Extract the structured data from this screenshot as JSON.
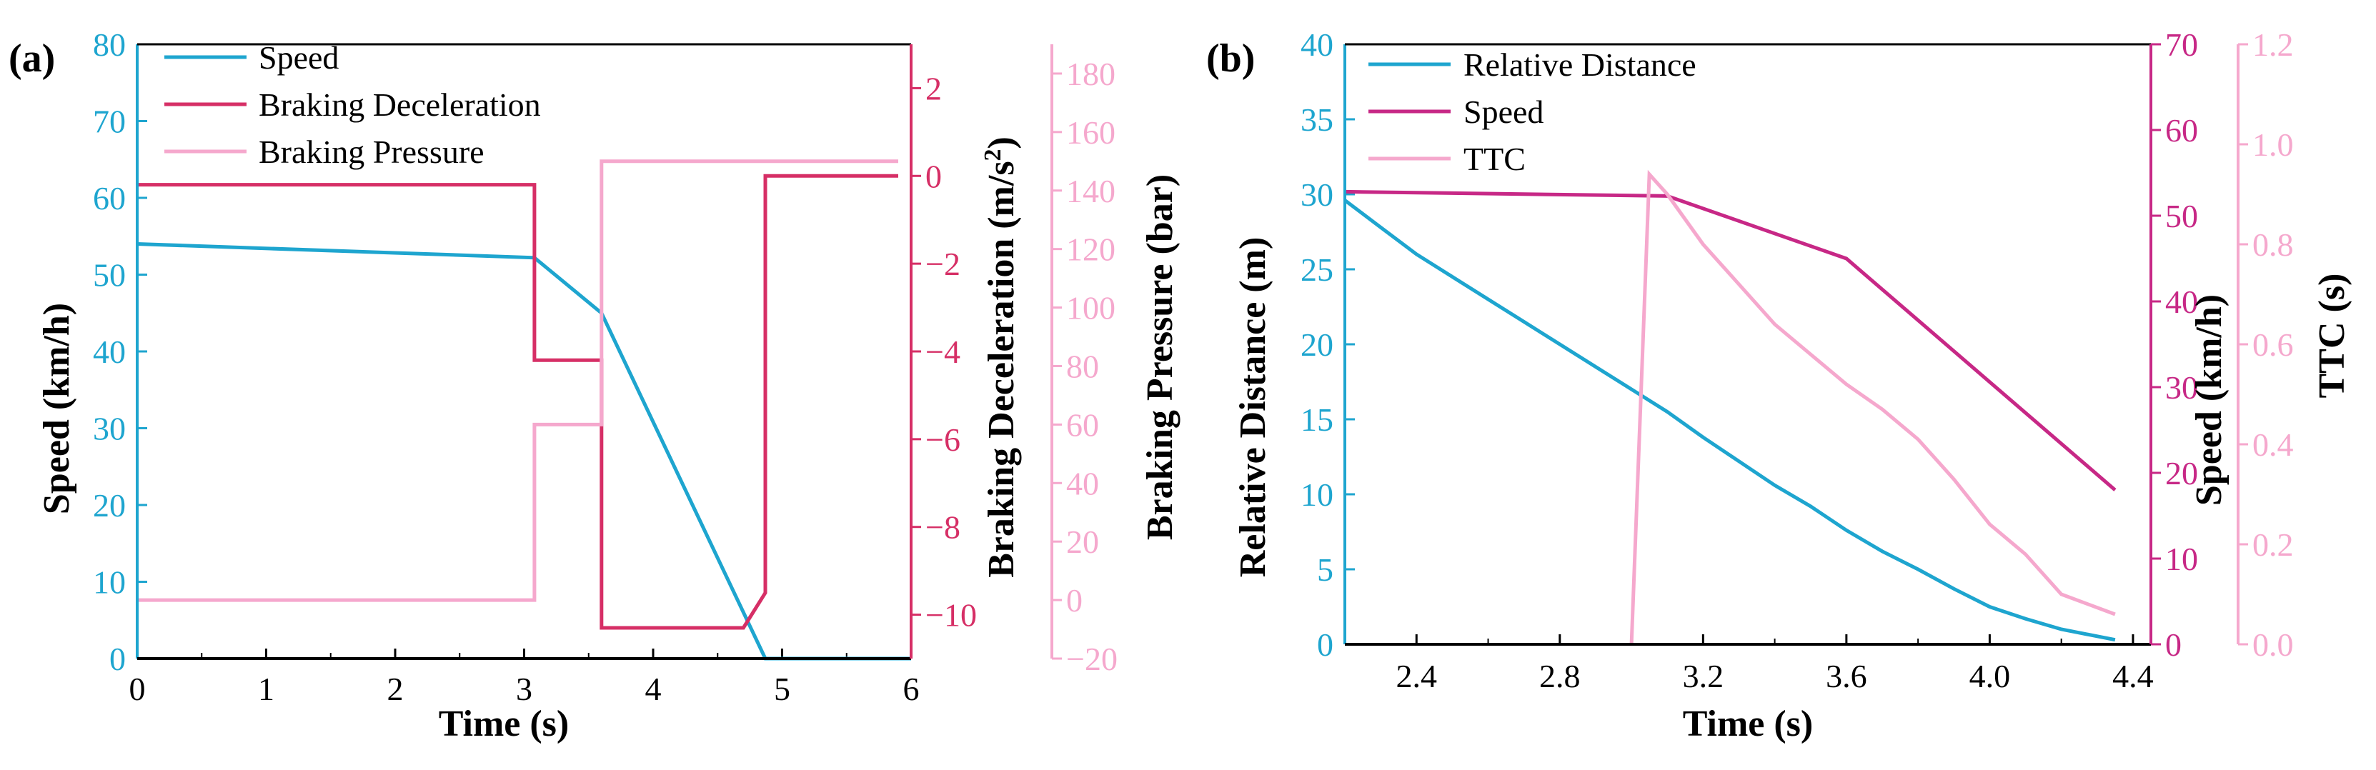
{
  "colors": {
    "blue": "#1ea5cf",
    "crimson": "#d62f66",
    "lightpink": "#f5a8cd",
    "magenta": "#c72886",
    "black": "#000000"
  },
  "chart_data": [
    {
      "type": "line",
      "panel_label": "(a)",
      "xlabel": "Time (s)",
      "xlim": [
        0,
        6
      ],
      "xticks": [
        0,
        1,
        2,
        3,
        4,
        5,
        6
      ],
      "axes": {
        "y_left": {
          "label": "Speed (km/h)",
          "lim": [
            0,
            80
          ],
          "ticks": [
            0,
            10,
            20,
            30,
            40,
            50,
            60,
            70,
            80
          ]
        },
        "y_right1": {
          "label": "Braking Deceleration (m/s2)",
          "lim": [
            -11,
            3
          ],
          "ticks": [
            -10,
            -8,
            -6,
            -4,
            -2,
            0,
            2
          ],
          "tick_labels": [
            "−10",
            "−8",
            "−6",
            "−4",
            "−2",
            "0",
            "2"
          ]
        },
        "y_right2": {
          "label": "Braking Pressure (bar)",
          "lim": [
            -20,
            190
          ],
          "ticks": [
            -20,
            0,
            20,
            40,
            60,
            80,
            100,
            120,
            140,
            160,
            180
          ],
          "tick_labels": [
            "−20",
            "0",
            "20",
            "40",
            "60",
            "80",
            "100",
            "120",
            "140",
            "160",
            "180"
          ]
        }
      },
      "series": [
        {
          "name": "Speed",
          "axis": "y_left",
          "color": "blue",
          "x": [
            0,
            3.08,
            3.6,
            4.87,
            6
          ],
          "y": [
            54,
            52.2,
            45,
            0,
            0
          ]
        },
        {
          "name": "Braking Deceleration",
          "axis": "y_right1",
          "color": "crimson",
          "x": [
            0,
            3.08,
            3.08,
            3.6,
            3.6,
            4.7,
            4.87,
            4.87,
            5.9
          ],
          "y": [
            -0.2,
            -0.2,
            -4.2,
            -4.2,
            -10.3,
            -10.3,
            -9.5,
            0,
            0
          ]
        },
        {
          "name": "Braking Pressure",
          "axis": "y_right2",
          "color": "lightpink",
          "x": [
            0,
            3.08,
            3.08,
            3.6,
            3.6,
            5.9
          ],
          "y": [
            0,
            0,
            60,
            60,
            150,
            150
          ]
        }
      ]
    },
    {
      "type": "line",
      "panel_label": "(b)",
      "xlabel": "Time (s)",
      "xlim": [
        2.2,
        4.45
      ],
      "xticks": [
        2.4,
        2.8,
        3.2,
        3.6,
        4.0,
        4.4
      ],
      "xtick_labels": [
        "2.4",
        "2.8",
        "3.2",
        "3.6",
        "4.0",
        "4.4"
      ],
      "axes": {
        "y_left": {
          "label": "Relative Distance (m)",
          "lim": [
            0,
            40
          ],
          "ticks": [
            0,
            5,
            10,
            15,
            20,
            25,
            30,
            35,
            40
          ]
        },
        "y_right1": {
          "label": "Speed (km/h)",
          "lim": [
            0,
            70
          ],
          "ticks": [
            0,
            10,
            20,
            30,
            40,
            50,
            60,
            70
          ]
        },
        "y_right2": {
          "label": "TTC (s)",
          "lim": [
            0,
            1.2
          ],
          "ticks": [
            0,
            0.2,
            0.4,
            0.6,
            0.8,
            1.0,
            1.2
          ],
          "tick_labels": [
            "0.0",
            "0.2",
            "0.4",
            "0.6",
            "0.8",
            "1.0",
            "1.2"
          ]
        }
      },
      "series": [
        {
          "name": "Relative Distance",
          "axis": "y_left",
          "color": "blue",
          "x": [
            2.2,
            2.3,
            2.4,
            2.5,
            2.6,
            2.7,
            2.8,
            2.9,
            3.0,
            3.1,
            3.2,
            3.3,
            3.4,
            3.5,
            3.6,
            3.7,
            3.8,
            3.9,
            4.0,
            4.1,
            4.2,
            4.35
          ],
          "y": [
            29.6,
            27.8,
            26.0,
            24.5,
            23.0,
            21.5,
            20.0,
            18.5,
            17.0,
            15.5,
            13.8,
            12.2,
            10.6,
            9.2,
            7.6,
            6.2,
            5.0,
            3.7,
            2.5,
            1.7,
            1.0,
            0.3
          ]
        },
        {
          "name": "Speed",
          "axis": "y_right1",
          "color": "magenta",
          "x": [
            2.2,
            3.1,
            3.6,
            4.35
          ],
          "y": [
            52.8,
            52.3,
            45.0,
            18.0
          ]
        },
        {
          "name": "TTC",
          "axis": "y_right2",
          "color": "lightpink",
          "x": [
            3.0,
            3.05,
            3.1,
            3.2,
            3.3,
            3.4,
            3.5,
            3.6,
            3.7,
            3.8,
            3.9,
            4.0,
            4.1,
            4.2,
            4.35
          ],
          "y": [
            0.0,
            0.94,
            0.9,
            0.8,
            0.72,
            0.64,
            0.58,
            0.52,
            0.47,
            0.41,
            0.33,
            0.24,
            0.18,
            0.1,
            0.06
          ]
        }
      ]
    }
  ]
}
